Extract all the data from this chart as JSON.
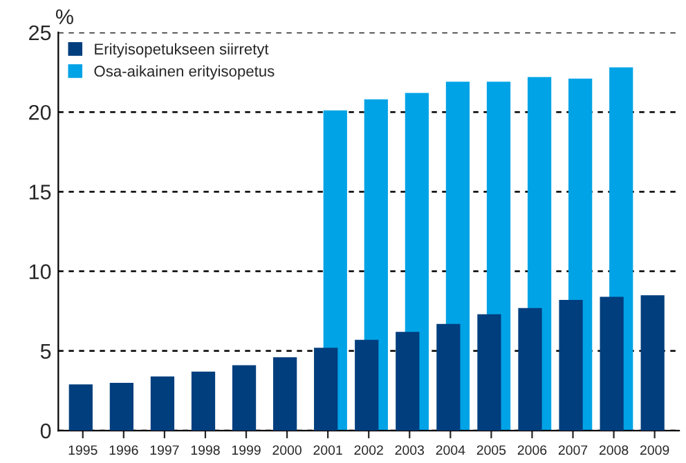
{
  "chart_data": {
    "type": "bar",
    "ylabel": "%",
    "categories": [
      "1995",
      "1996",
      "1997",
      "1998",
      "1999",
      "2000",
      "2001",
      "2002",
      "2003",
      "2004",
      "2005",
      "2006",
      "2007",
      "2008",
      "2009"
    ],
    "series": [
      {
        "name": "Osa-aikainen erityisopetus",
        "color": "#00a3e6",
        "values": [
          null,
          null,
          null,
          null,
          null,
          null,
          20.1,
          20.8,
          21.2,
          21.9,
          21.9,
          22.2,
          22.1,
          22.8,
          null
        ]
      },
      {
        "name": "Erityisopetukseen siirretyt",
        "color": "#003e7e",
        "values": [
          2.9,
          3.0,
          3.4,
          3.7,
          4.1,
          4.6,
          5.2,
          5.7,
          6.2,
          6.7,
          7.3,
          7.7,
          8.2,
          8.4,
          8.5
        ]
      }
    ],
    "ylim": [
      0,
      25
    ],
    "yticks": [
      0,
      5,
      10,
      15,
      20,
      25
    ],
    "grid": "y",
    "line_style": "dashed",
    "legend": "top left"
  }
}
